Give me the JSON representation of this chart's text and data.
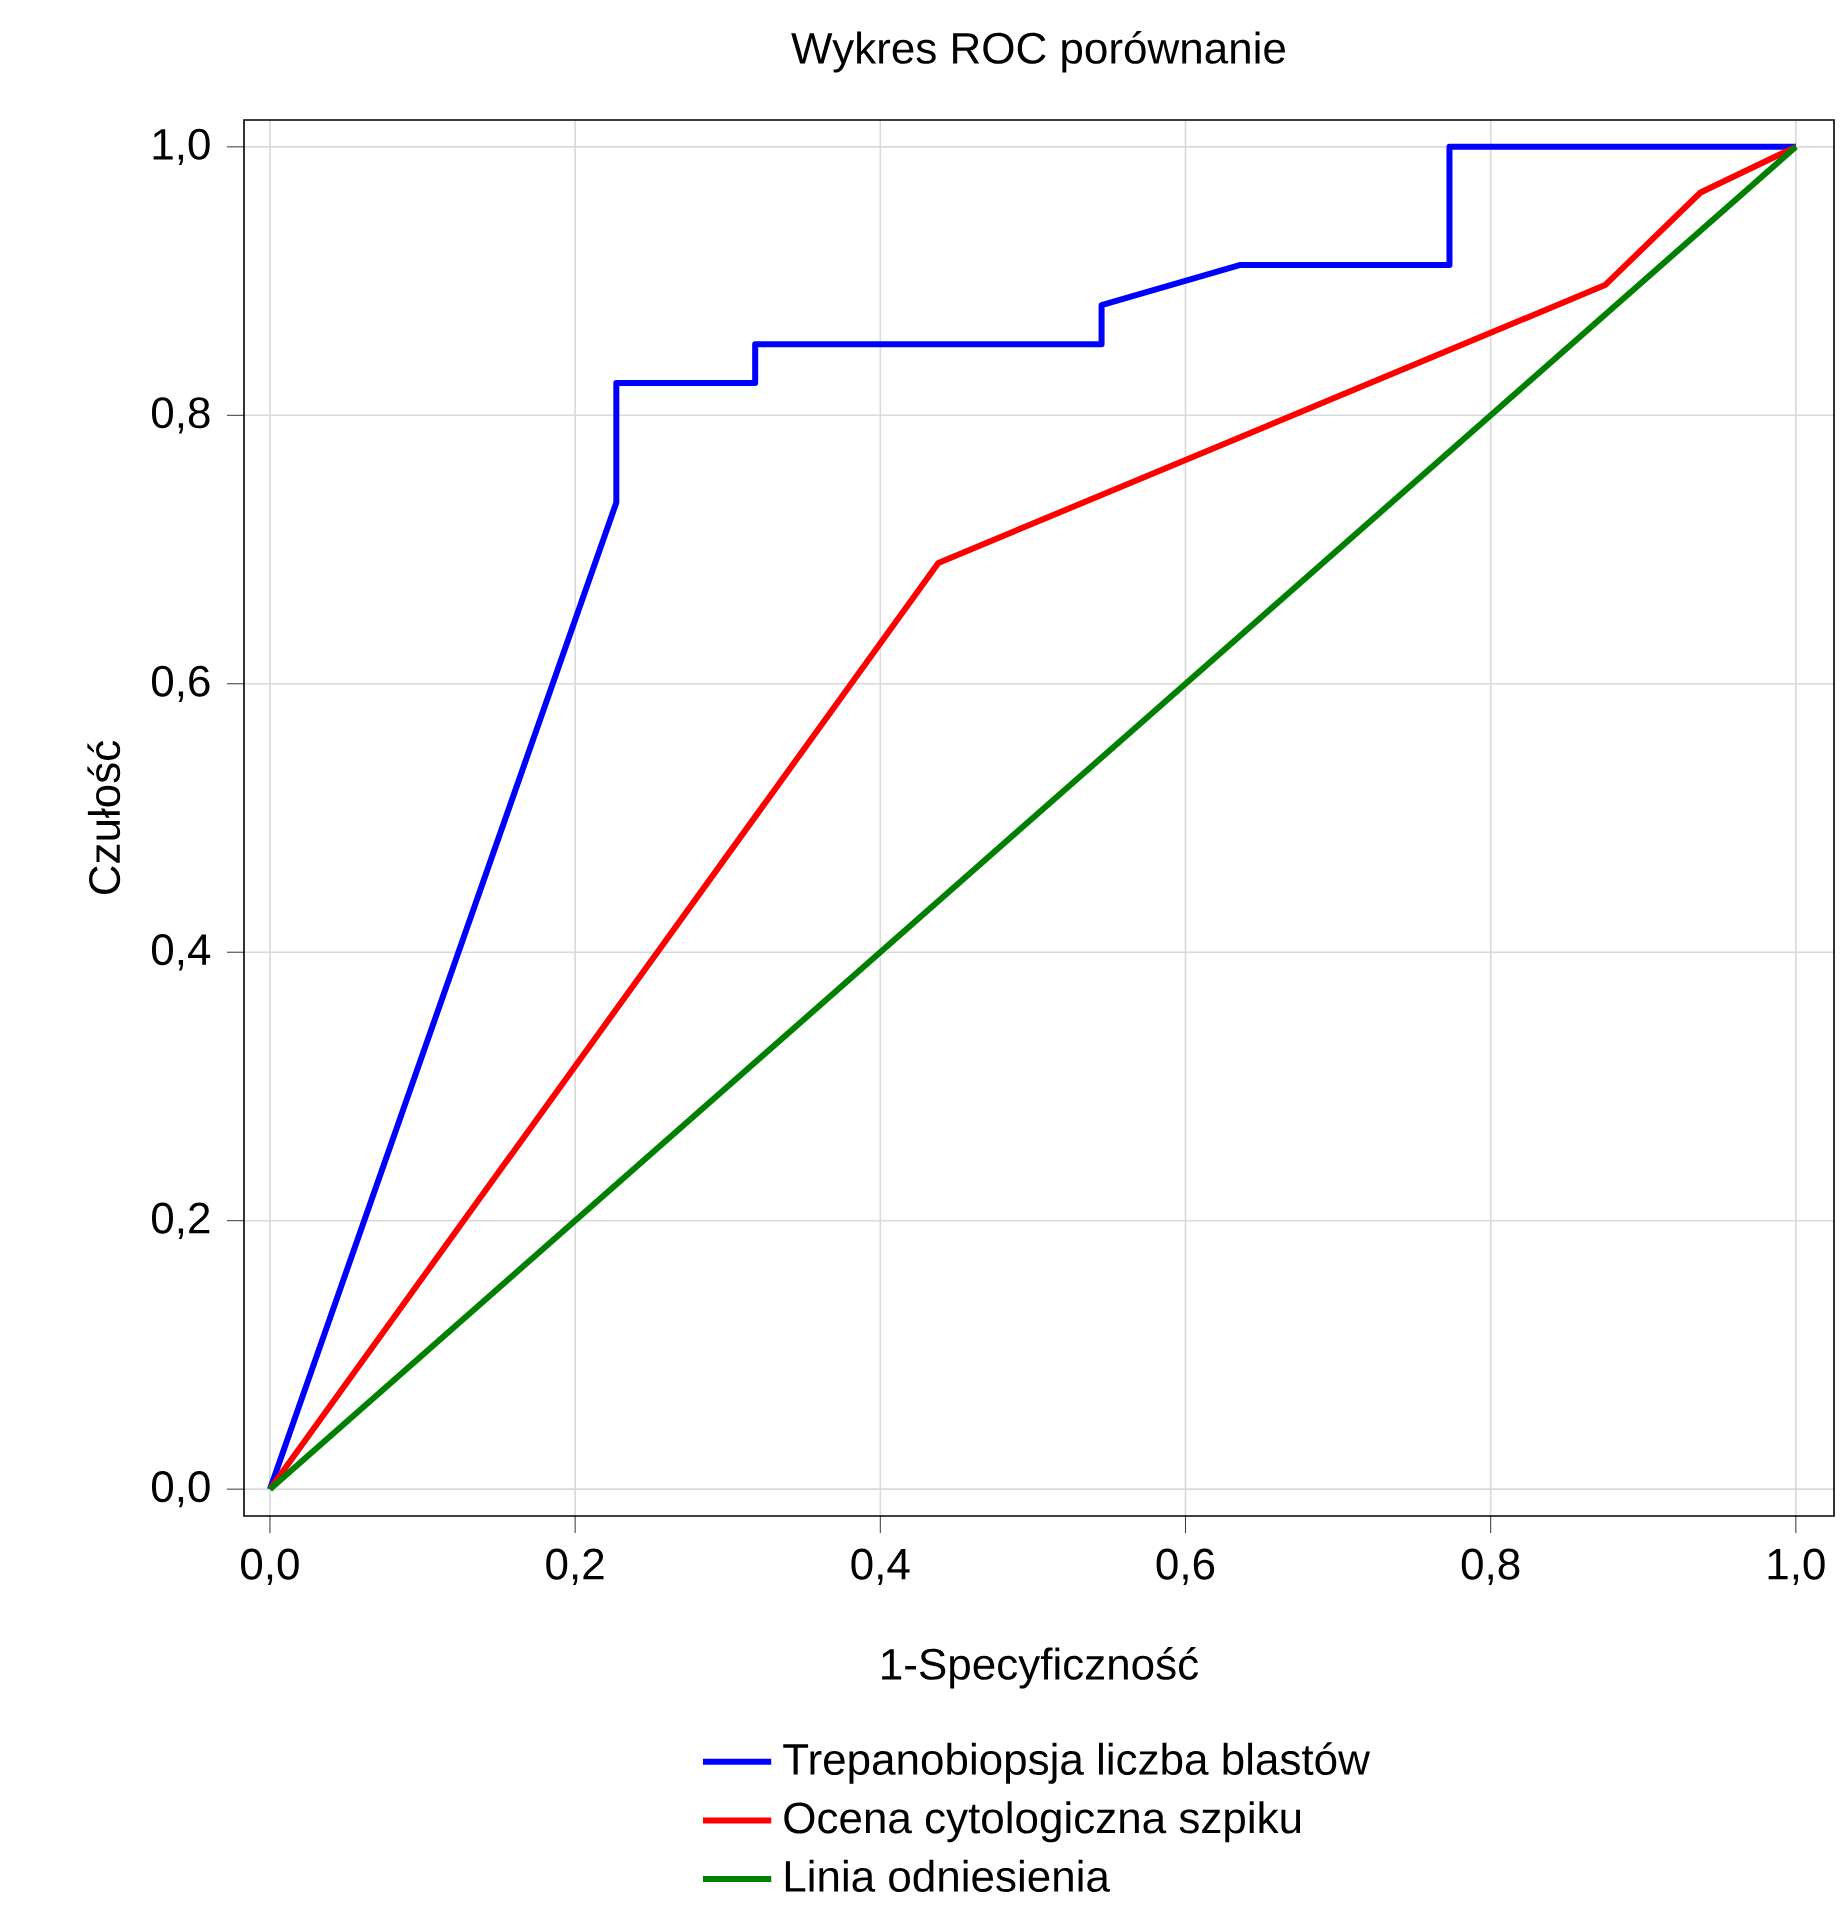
{
  "chart_data": {
    "type": "line",
    "title": "Wykres ROC porównanie",
    "xlabel": "1-Specyficzność",
    "ylabel": "Czułość",
    "xlim": [
      -0.017,
      1.025
    ],
    "ylim": [
      -0.02,
      1.02
    ],
    "xticks": [
      {
        "value": 0,
        "label": "0,0"
      },
      {
        "value": 0.2,
        "label": "0,2"
      },
      {
        "value": 0.4,
        "label": "0,4"
      },
      {
        "value": 0.6,
        "label": "0,6"
      },
      {
        "value": 0.8,
        "label": "0,8"
      },
      {
        "value": 1,
        "label": "1,0"
      }
    ],
    "yticks": [
      {
        "value": 0,
        "label": "0,0"
      },
      {
        "value": 0.2,
        "label": "0,2"
      },
      {
        "value": 0.4,
        "label": "0,4"
      },
      {
        "value": 0.6,
        "label": "0,6"
      },
      {
        "value": 0.8,
        "label": "0,8"
      },
      {
        "value": 1,
        "label": "1,0"
      }
    ],
    "grid": true,
    "legend": "bottom",
    "series": [
      {
        "name": "Trepanobiopsja liczba blastów",
        "color": "#0000ff",
        "x": [
          0,
          0.227,
          0.227,
          0.318,
          0.318,
          0.545,
          0.545,
          0.636,
          0.773,
          0.773,
          1
        ],
        "values": [
          0,
          0.735,
          0.824,
          0.824,
          0.853,
          0.853,
          0.882,
          0.912,
          0.912,
          1,
          1
        ]
      },
      {
        "name": "Ocena cytologiczna szpiku",
        "color": "#ff0000",
        "x": [
          0,
          0.438,
          0.875,
          0.9375,
          1
        ],
        "values": [
          0,
          0.69,
          0.897,
          0.966,
          1
        ]
      },
      {
        "name": "Linia odniesienia",
        "color": "#008000",
        "x": [
          0,
          1
        ],
        "values": [
          0,
          1
        ]
      }
    ]
  }
}
